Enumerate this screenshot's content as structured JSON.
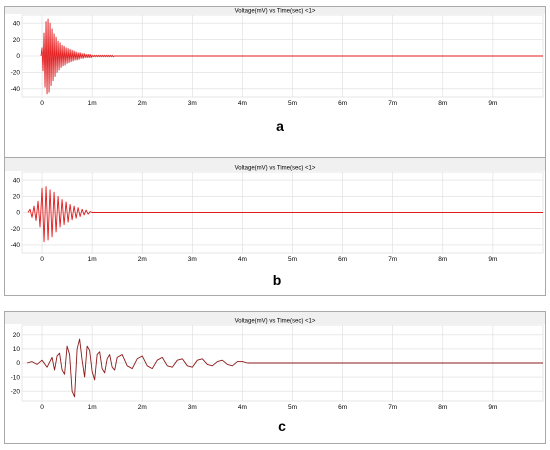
{
  "chart_data": [
    {
      "type": "line",
      "panel_label": "a",
      "title": "Voltage(mV) vs Time(sec) <1>",
      "xlabel": "",
      "ylabel": "",
      "x_ticks": [
        "0",
        "1m",
        "2m",
        "3m",
        "4m",
        "5m",
        "6m",
        "7m",
        "8m",
        "9m"
      ],
      "y_ticks": [
        "40",
        "20",
        "0",
        "-20",
        "-40"
      ],
      "xlim": [
        -0.0004,
        0.01
      ],
      "ylim": [
        -50,
        50
      ],
      "grid": true,
      "line_color": "#e31a1c",
      "series": [
        {
          "x": [
            -2e-05,
            0.0,
            2e-05,
            4e-05,
            6e-05,
            8e-05,
            0.0001,
            0.00012,
            0.00014,
            0.00016,
            0.00018,
            0.0002,
            0.00022,
            0.00024,
            0.00026,
            0.00028,
            0.0003,
            0.00032,
            0.00034,
            0.00036,
            0.00038,
            0.0004,
            0.00042,
            0.00044,
            0.00046,
            0.00048,
            0.0005,
            0.00052,
            0.00054,
            0.00056,
            0.00058,
            0.0006,
            0.00062,
            0.00064,
            0.00066,
            0.00068,
            0.0007,
            0.00072,
            0.00074,
            0.00076,
            0.00078,
            0.0008,
            0.00082,
            0.00084,
            0.00086,
            0.00088,
            0.0009,
            0.00092,
            0.00094,
            0.00096,
            0.00098,
            0.001,
            0.00102,
            0.00104,
            0.00106,
            0.00108,
            0.0011,
            0.00112,
            0.00114,
            0.00116,
            0.00118,
            0.0012,
            0.00122,
            0.00124,
            0.00126,
            0.00128,
            0.0013,
            0.00132,
            0.00134,
            0.00136,
            0.00138,
            0.0014,
            0.00142,
            0.00144,
            0.01
          ],
          "y": [
            0,
            10,
            -18,
            28,
            -38,
            42,
            -46,
            45,
            -44,
            40,
            -36,
            33,
            -30,
            27,
            -25,
            23,
            -20,
            18,
            -17,
            16,
            -14,
            13,
            -12,
            12,
            -11,
            10,
            -9,
            9,
            -8,
            8,
            -7,
            7,
            -6,
            6,
            -5,
            5,
            -5,
            4,
            -4,
            4,
            -3,
            3,
            -3,
            3,
            -2,
            2,
            -2,
            2,
            -2,
            2,
            -2,
            1,
            -1,
            1,
            -1,
            1,
            -1,
            1,
            -1,
            1,
            -1,
            1,
            -1,
            1,
            -1,
            1,
            -1,
            1,
            -1,
            1,
            -1,
            1,
            -1,
            0,
            0
          ]
        }
      ]
    },
    {
      "type": "line",
      "panel_label": "b",
      "title": "Voltage(mV) vs Time(sec) <1>",
      "xlabel": "",
      "ylabel": "",
      "x_ticks": [
        "0",
        "1m",
        "2m",
        "3m",
        "4m",
        "5m",
        "6m",
        "7m",
        "8m",
        "9m"
      ],
      "y_ticks": [
        "40",
        "20",
        "0",
        "-20",
        "-40"
      ],
      "xlim": [
        -0.0004,
        0.01
      ],
      "ylim": [
        -50,
        50
      ],
      "grid": true,
      "line_color": "#e31a1c",
      "series": [
        {
          "x": [
            -0.00028,
            -0.00024,
            -0.0002,
            -0.00016,
            -0.00012,
            -8e-05,
            -4e-05,
            0.0,
            4e-05,
            8e-05,
            0.00012,
            0.00016,
            0.0002,
            0.00024,
            0.00028,
            0.00032,
            0.00036,
            0.0004,
            0.00044,
            0.00048,
            0.00052,
            0.00056,
            0.0006,
            0.00064,
            0.00068,
            0.00072,
            0.00076,
            0.0008,
            0.00084,
            0.00088,
            0.00092,
            0.00096,
            0.001,
            0.01
          ],
          "y": [
            0,
            4,
            -6,
            8,
            -10,
            14,
            -18,
            30,
            -36,
            32,
            -34,
            28,
            -30,
            25,
            -24,
            20,
            -18,
            16,
            -15,
            13,
            -12,
            10,
            -9,
            8,
            -7,
            6,
            -5,
            4,
            -3,
            3,
            -2,
            1,
            0,
            0
          ]
        }
      ]
    },
    {
      "type": "line",
      "panel_label": "c",
      "title": "Voltage(mV) vs Time(sec) <1>",
      "xlabel": "",
      "ylabel": "",
      "x_ticks": [
        "0",
        "1m",
        "2m",
        "3m",
        "4m",
        "5m",
        "6m",
        "7m",
        "8m",
        "9m"
      ],
      "y_ticks": [
        "20",
        "10",
        "0",
        "-10",
        "-20"
      ],
      "xlim": [
        -0.0004,
        0.01
      ],
      "ylim": [
        -27,
        27
      ],
      "grid": true,
      "line_color": "#8b1a1a",
      "series": [
        {
          "x": [
            -0.0003,
            -0.0002,
            -0.0001,
            0.0,
            0.0001,
            0.0002,
            0.00025,
            0.0003,
            0.00035,
            0.0004,
            0.00045,
            0.0005,
            0.00055,
            0.0006,
            0.00065,
            0.0007,
            0.00075,
            0.0008,
            0.00085,
            0.0009,
            0.00095,
            0.001,
            0.00105,
            0.0011,
            0.00115,
            0.0012,
            0.00125,
            0.0013,
            0.00135,
            0.0014,
            0.00145,
            0.0015,
            0.0016,
            0.0017,
            0.0018,
            0.0019,
            0.002,
            0.0021,
            0.0022,
            0.0023,
            0.0024,
            0.0025,
            0.0026,
            0.0027,
            0.0028,
            0.0029,
            0.003,
            0.0031,
            0.0032,
            0.0033,
            0.0034,
            0.0035,
            0.0036,
            0.0037,
            0.0038,
            0.0039,
            0.004,
            0.0041,
            0.01
          ],
          "y": [
            0,
            1,
            -1,
            2,
            -3,
            4,
            -5,
            5,
            7,
            -5,
            -8,
            12,
            6,
            -20,
            -24,
            10,
            17,
            2,
            -10,
            12,
            9,
            -6,
            -12,
            6,
            8,
            -4,
            -7,
            3,
            6,
            -3,
            -5,
            4,
            6,
            -2,
            -4,
            3,
            5,
            -2,
            -4,
            2,
            4,
            -2,
            -3,
            2,
            3,
            -2,
            -3,
            2,
            3,
            -1,
            -2,
            1,
            2,
            -1,
            -2,
            1,
            1,
            0,
            0
          ]
        }
      ]
    }
  ]
}
